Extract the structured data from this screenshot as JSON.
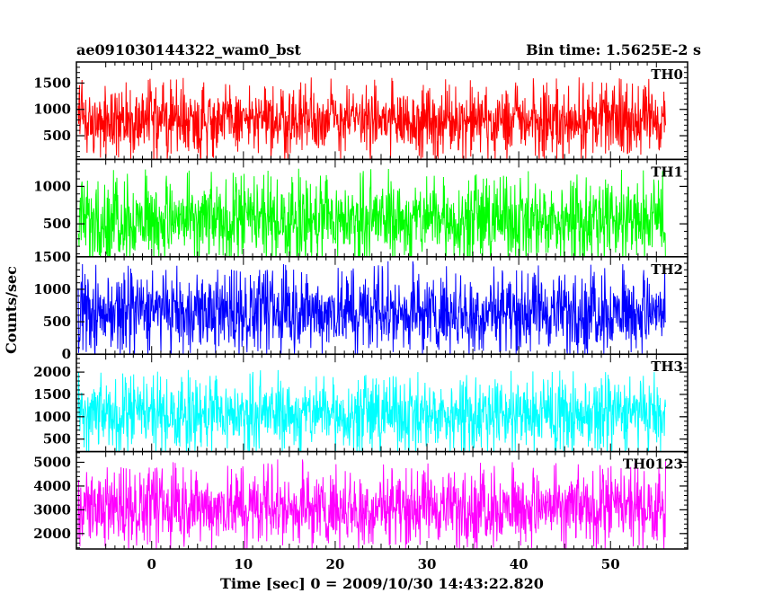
{
  "header": {
    "title": "ae091030144322_wam0_bst",
    "bin_time": "Bin time: 1.5625E-2 s"
  },
  "chart_data": {
    "type": "line",
    "title": "ae091030144322_wam0_bst",
    "xlabel": "Time [sec] 0 = 2009/10/30 14:43:22.820",
    "ylabel": "Counts/sec",
    "xlim": [
      -8.2,
      58.4
    ],
    "x_data_range": [
      -8.0,
      56.0
    ],
    "xticks": [
      0,
      10,
      20,
      30,
      40,
      50
    ],
    "series": [
      {
        "name": "TH0",
        "color": "#ff0000",
        "ylim": [
          50,
          1900
        ],
        "yticks": [
          500,
          1000,
          1500
        ],
        "typical_range": [
          200,
          1500
        ],
        "mean": 800
      },
      {
        "name": "TH1",
        "color": "#00ff00",
        "ylim": [
          60,
          1360
        ],
        "yticks": [
          500,
          1000
        ],
        "typical_range": [
          100,
          1200
        ],
        "mean": 550
      },
      {
        "name": "TH2",
        "color": "#0000ff",
        "ylim": [
          0,
          1500
        ],
        "yticks": [
          0,
          500,
          1000,
          1500
        ],
        "typical_range": [
          150,
          1350
        ],
        "mean": 650
      },
      {
        "name": "TH3",
        "color": "#00ffff",
        "ylim": [
          220,
          2400
        ],
        "yticks": [
          500,
          1000,
          1500,
          2000
        ],
        "typical_range": [
          400,
          2000
        ],
        "mean": 1050
      },
      {
        "name": "TH0123",
        "color": "#ff00ff",
        "ylim": [
          1350,
          5450
        ],
        "yticks": [
          2000,
          3000,
          4000,
          5000
        ],
        "typical_range": [
          1700,
          4800
        ],
        "mean": 3100
      }
    ]
  }
}
